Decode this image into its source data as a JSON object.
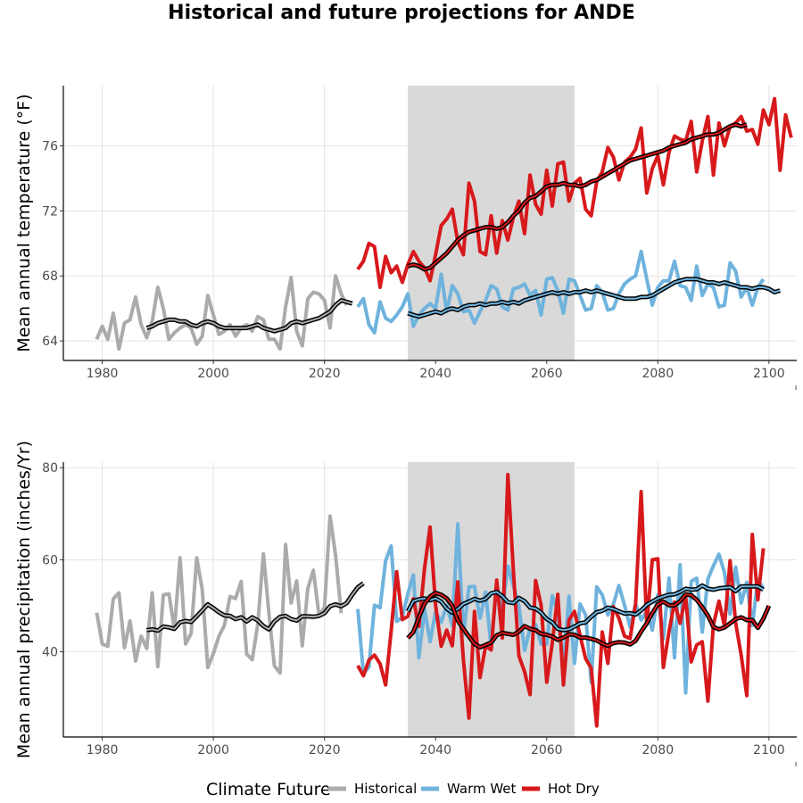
{
  "title": "Historical and future projections for ANDE",
  "colors": {
    "historical": "#ababab",
    "warm_wet": "#6fb3dd",
    "hot_dry": "#d7191c",
    "smooth_outline": "#000000",
    "shade": "#d9d9d9",
    "grid": "#e3e3e3"
  },
  "legend": {
    "title": "Climate Future",
    "items": [
      {
        "key": "historical",
        "label": "Historical"
      },
      {
        "key": "warm_wet",
        "label": "Warm Wet"
      },
      {
        "key": "hot_dry",
        "label": "Hot Dry"
      }
    ]
  },
  "chart_data": [
    {
      "type": "line",
      "ylabel": "Mean annual temperature (°F)",
      "xlim": [
        1973,
        2105
      ],
      "ylim": [
        62.8,
        79.7
      ],
      "xticks": [
        1980,
        2000,
        2020,
        2040,
        2060,
        2080,
        2100
      ],
      "yticks": [
        64,
        68,
        72,
        76
      ],
      "shaded_period": [
        2035,
        2065
      ],
      "grid": true,
      "series": [
        {
          "name": "Historical",
          "key": "historical",
          "start": 1979,
          "values": [
            64.1,
            64.9,
            64.1,
            65.7,
            63.5,
            65.1,
            65.3,
            66.7,
            65.0,
            64.2,
            65.2,
            67.3,
            66.0,
            64.1,
            64.5,
            64.8,
            65.0,
            64.8,
            63.8,
            64.3,
            66.8,
            65.6,
            64.4,
            64.6,
            65.0,
            64.3,
            64.8,
            65.0,
            64.6,
            65.5,
            65.3,
            64.1,
            64.1,
            63.5,
            66.1,
            67.9,
            64.6,
            63.7,
            66.6,
            67.0,
            66.9,
            66.5,
            64.8,
            68.0,
            66.9,
            66.2
          ]
        },
        {
          "name": "Warm Wet",
          "key": "warm_wet",
          "start": 2026,
          "values": [
            66.1,
            66.6,
            65.0,
            64.5,
            66.4,
            65.4,
            65.2,
            65.6,
            66.1,
            66.9,
            64.9,
            65.6,
            66.0,
            66.3,
            66.0,
            68.1,
            65.8,
            67.4,
            66.9,
            65.8,
            65.9,
            65.1,
            65.8,
            66.5,
            67.4,
            67.2,
            66.1,
            65.9,
            67.2,
            67.3,
            67.5,
            66.8,
            67.1,
            65.6,
            67.8,
            67.9,
            67.1,
            65.7,
            67.8,
            67.7,
            66.8,
            65.9,
            66.0,
            67.4,
            67.0,
            65.9,
            66.0,
            66.9,
            67.5,
            67.8,
            68.0,
            69.5,
            67.8,
            66.2,
            67.3,
            67.7,
            67.7,
            68.9,
            67.4,
            67.3,
            66.5,
            68.6,
            66.8,
            67.5,
            67.3,
            66.1,
            66.2,
            68.8,
            68.3,
            66.7,
            67.3,
            66.2,
            67.3,
            67.8
          ]
        },
        {
          "name": "Hot Dry",
          "key": "hot_dry",
          "start": 2026,
          "values": [
            68.4,
            68.9,
            70.0,
            69.8,
            67.3,
            69.2,
            68.2,
            68.6,
            67.6,
            68.7,
            69.5,
            68.9,
            68.5,
            67.7,
            69.3,
            71.1,
            71.5,
            72.1,
            70.1,
            69.3,
            73.7,
            72.6,
            69.5,
            69.3,
            71.7,
            69.4,
            71.4,
            70.2,
            71.6,
            72.6,
            70.6,
            74.2,
            72.4,
            71.8,
            74.5,
            72.3,
            74.9,
            75.0,
            72.6,
            73.7,
            74.0,
            72.1,
            71.7,
            73.8,
            74.4,
            75.9,
            75.3,
            73.9,
            75.0,
            75.3,
            75.8,
            77.1,
            73.1,
            74.6,
            75.4,
            73.6,
            75.6,
            76.6,
            76.4,
            76.3,
            77.5,
            74.4,
            76.3,
            77.8,
            74.2,
            77.4,
            76.0,
            77.2,
            77.4,
            77.8,
            76.9,
            77.0,
            76.1,
            78.2,
            77.3,
            78.9,
            74.5,
            77.9,
            76.5
          ]
        },
        {
          "name": "Historical smoothed",
          "key": "historical",
          "smooth": true,
          "start": 1988,
          "values": [
            64.8,
            64.9,
            65.1,
            65.2,
            65.3,
            65.3,
            65.2,
            65.2,
            65.0,
            64.9,
            65.1,
            65.2,
            65.1,
            64.9,
            64.8,
            64.8,
            64.8,
            64.8,
            64.8,
            64.9,
            65.0,
            64.8,
            64.7,
            64.6,
            64.7,
            64.8,
            65.1,
            65.2,
            65.1,
            65.2,
            65.3,
            65.4,
            65.6,
            65.8,
            66.2,
            66.5,
            66.4,
            66.3
          ]
        },
        {
          "name": "Warm Wet smoothed",
          "key": "warm_wet",
          "smooth": true,
          "start": 2035,
          "values": [
            65.7,
            65.6,
            65.5,
            65.6,
            65.7,
            65.8,
            65.7,
            65.9,
            66.0,
            65.9,
            66.1,
            66.2,
            66.2,
            66.3,
            66.2,
            66.3,
            66.3,
            66.4,
            66.3,
            66.4,
            66.3,
            66.5,
            66.6,
            66.7,
            66.8,
            66.9,
            67.0,
            66.9,
            67.0,
            66.9,
            67.0,
            67.0,
            67.1,
            67.0,
            67.1,
            67.0,
            66.9,
            66.8,
            66.7,
            66.6,
            66.6,
            66.6,
            66.7,
            66.7,
            66.8,
            67.0,
            67.2,
            67.4,
            67.6,
            67.7,
            67.8,
            67.8,
            67.8,
            67.7,
            67.6,
            67.6,
            67.5,
            67.6,
            67.5,
            67.4,
            67.3,
            67.3,
            67.2,
            67.3,
            67.3,
            67.2,
            67.0,
            67.1
          ]
        },
        {
          "name": "Hot Dry smoothed",
          "key": "hot_dry",
          "smooth": true,
          "start": 2035,
          "values": [
            68.6,
            68.7,
            68.6,
            68.4,
            68.5,
            68.8,
            69.1,
            69.4,
            69.8,
            70.2,
            70.5,
            70.7,
            70.8,
            70.9,
            71.0,
            71.0,
            70.9,
            71.0,
            71.3,
            71.7,
            72.0,
            72.5,
            72.8,
            72.9,
            73.2,
            73.5,
            73.6,
            73.6,
            73.7,
            73.6,
            73.6,
            73.5,
            73.6,
            73.8,
            73.9,
            74.1,
            74.3,
            74.5,
            74.7,
            74.9,
            75.1,
            75.2,
            75.3,
            75.4,
            75.5,
            75.6,
            75.7,
            75.9,
            76.0,
            76.1,
            76.2,
            76.4,
            76.5,
            76.6,
            76.7,
            76.7,
            76.8,
            77.0,
            77.2,
            77.3,
            77.2,
            77.3
          ]
        }
      ]
    },
    {
      "type": "line",
      "ylabel": "Mean annual precipitation (inches/Yr)",
      "xlim": [
        1973,
        2105
      ],
      "ylim": [
        21.5,
        81.2
      ],
      "xticks": [
        1980,
        2000,
        2020,
        2040,
        2060,
        2080,
        2100
      ],
      "yticks": [
        40,
        60,
        80
      ],
      "shaded_period": [
        2035,
        2065
      ],
      "grid": true,
      "series": [
        {
          "name": "Historical",
          "key": "historical",
          "start": 1979,
          "values": [
            48.5,
            41.7,
            41.2,
            51.5,
            52.8,
            40.9,
            46.7,
            38.0,
            43.4,
            40.7,
            52.8,
            36.8,
            52.4,
            52.6,
            44.9,
            60.4,
            41.7,
            44.0,
            60.4,
            53.5,
            36.6,
            39.6,
            43.4,
            45.8,
            52.0,
            51.6,
            55.3,
            39.5,
            38.3,
            46.1,
            61.3,
            48.4,
            36.9,
            35.4,
            63.3,
            50.6,
            55.4,
            41.3,
            53.8,
            57.7,
            48.0,
            49.6,
            69.5,
            61.0,
            48.4
          ]
        },
        {
          "name": "Warm Wet",
          "key": "warm_wet",
          "start": 2026,
          "values": [
            49.3,
            35.3,
            36.7,
            50.1,
            49.6,
            59.8,
            63.0,
            46.6,
            47.5,
            52.6,
            56.7,
            38.7,
            49.4,
            42.2,
            48.7,
            46.4,
            50.1,
            45.7,
            67.8,
            43.7,
            54.1,
            54.2,
            47.3,
            53.0,
            41.0,
            54.8,
            49.1,
            58.6,
            54.4,
            50.0,
            40.3,
            45.0,
            45.9,
            41.7,
            41.7,
            52.2,
            48.4,
            36.9,
            52.1,
            37.5,
            50.4,
            48.0,
            33.4,
            54.1,
            52.4,
            48.0,
            50.4,
            54.4,
            50.1,
            45.4,
            50.4,
            46.9,
            48.9,
            44.7,
            52.4,
            42.8,
            56.0,
            38.7,
            58.9,
            31.1,
            55.3,
            56.0,
            44.3,
            55.8,
            58.7,
            61.2,
            57.2,
            48.2,
            58.4,
            50.6,
            55.1,
            45.7,
            55.7,
            53.8
          ]
        },
        {
          "name": "Hot Dry",
          "key": "hot_dry",
          "start": 2026,
          "values": [
            37.0,
            34.8,
            38.2,
            39.3,
            37.4,
            32.8,
            44.5,
            57.4,
            47.0,
            47.7,
            51.5,
            45.5,
            58.1,
            67.1,
            50.1,
            41.2,
            44.7,
            41.3,
            55.2,
            38.2,
            25.6,
            48.8,
            34.4,
            41.3,
            40.4,
            55.6,
            43.0,
            78.5,
            57.6,
            39.1,
            35.7,
            30.7,
            55.5,
            50.1,
            33.4,
            41.9,
            52.5,
            32.8,
            46.9,
            48.8,
            43.6,
            38.5,
            36.5,
            23.9,
            44.3,
            37.5,
            49.8,
            47.3,
            43.4,
            42.9,
            50.5,
            74.8,
            46.0,
            60.0,
            60.2,
            36.6,
            44.4,
            50.8,
            46.2,
            52.1,
            37.8,
            41.5,
            42.2,
            29.3,
            45.9,
            51.0,
            45.6,
            59.8,
            46.3,
            39.3,
            30.5,
            65.5,
            51.3,
            62.5
          ]
        },
        {
          "name": "Historical smoothed",
          "key": "historical",
          "smooth": true,
          "start": 1988,
          "values": [
            44.7,
            44.9,
            44.6,
            45.5,
            45.3,
            45.0,
            46.4,
            46.7,
            46.5,
            47.7,
            49.0,
            50.3,
            49.5,
            48.6,
            47.9,
            47.8,
            47.1,
            47.5,
            46.6,
            47.5,
            46.8,
            45.6,
            44.9,
            46.6,
            47.6,
            47.8,
            47.1,
            46.8,
            47.7,
            47.7,
            47.6,
            47.8,
            48.4,
            49.9,
            50.3,
            49.9,
            50.6,
            52.4,
            54.0,
            54.9
          ]
        },
        {
          "name": "Warm Wet smoothed",
          "key": "warm_wet",
          "smooth": true,
          "start": 2035,
          "values": [
            48.8,
            51.0,
            51.4,
            51.6,
            51.2,
            51.6,
            50.9,
            49.4,
            48.5,
            49.3,
            50.4,
            50.9,
            51.5,
            51.1,
            51.5,
            52.7,
            53.0,
            52.1,
            50.8,
            50.6,
            51.7,
            51.0,
            49.6,
            49.4,
            48.5,
            47.1,
            46.4,
            45.0,
            44.7,
            44.9,
            45.5,
            46.2,
            46.4,
            47.6,
            48.6,
            48.9,
            49.6,
            49.3,
            48.8,
            48.3,
            48.4,
            48.1,
            49.0,
            50.2,
            50.9,
            51.6,
            52.0,
            52.4,
            52.5,
            53.0,
            53.7,
            53.5,
            53.6,
            54.4,
            53.7,
            53.5,
            53.8,
            53.9,
            54.0,
            53.2,
            54.2,
            54.2,
            54.2,
            54.2,
            53.5
          ]
        },
        {
          "name": "Hot Dry smoothed",
          "key": "hot_dry",
          "smooth": true,
          "start": 2035,
          "values": [
            43.0,
            44.3,
            47.5,
            50.4,
            52.0,
            52.8,
            52.4,
            51.6,
            50.0,
            46.8,
            45.0,
            43.3,
            41.7,
            41.0,
            41.5,
            42.0,
            43.6,
            44.1,
            43.9,
            43.7,
            44.4,
            45.6,
            45.0,
            44.7,
            43.9,
            43.7,
            43.3,
            42.6,
            43.1,
            43.8,
            43.7,
            43.1,
            43.1,
            42.8,
            42.5,
            41.8,
            41.3,
            41.9,
            42.1,
            42.0,
            41.6,
            42.4,
            44.4,
            46.2,
            48.4,
            50.3,
            50.9,
            50.1,
            50.1,
            51.0,
            52.5,
            52.3,
            51.3,
            49.7,
            47.9,
            45.4,
            44.9,
            45.3,
            46.2,
            47.1,
            47.5,
            46.9,
            46.9,
            45.2,
            47.2,
            50.0
          ]
        }
      ]
    }
  ]
}
